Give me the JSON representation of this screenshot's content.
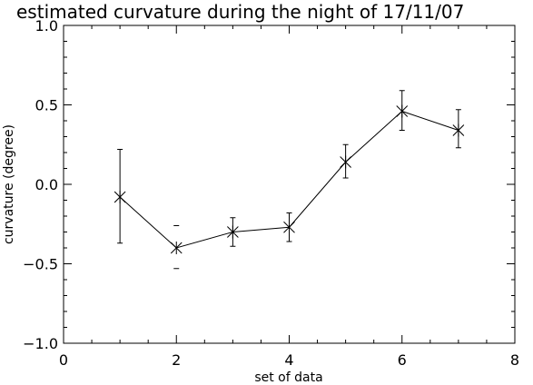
{
  "chart_data": {
    "type": "line",
    "title": "estimated curvature during the night of 17/11/07",
    "xlabel": "set of data",
    "ylabel": "curvature (degree)",
    "xlim": [
      0,
      8
    ],
    "ylim": [
      -1.0,
      1.0
    ],
    "x_ticks": [
      0,
      2,
      4,
      6,
      8
    ],
    "x_tick_labels": [
      "0",
      "2",
      "4",
      "6",
      "8"
    ],
    "y_ticks": [
      -1.0,
      -0.5,
      0.0,
      0.5,
      1.0
    ],
    "y_tick_labels": [
      "−1.0",
      "−0.5",
      "0.0",
      "0.5",
      "1.0"
    ],
    "grid": false,
    "marker": "asterisk",
    "color": "#000000",
    "series": [
      {
        "x": [
          1,
          2,
          3,
          4,
          5,
          6,
          7
        ],
        "y": [
          -0.08,
          -0.4,
          -0.3,
          -0.27,
          0.14,
          0.46,
          0.34
        ],
        "error_low": [
          -0.37,
          -0.53,
          -0.39,
          -0.36,
          0.04,
          0.34,
          0.23
        ],
        "error_high": [
          0.22,
          -0.26,
          -0.21,
          -0.18,
          0.25,
          0.59,
          0.47
        ]
      }
    ]
  }
}
